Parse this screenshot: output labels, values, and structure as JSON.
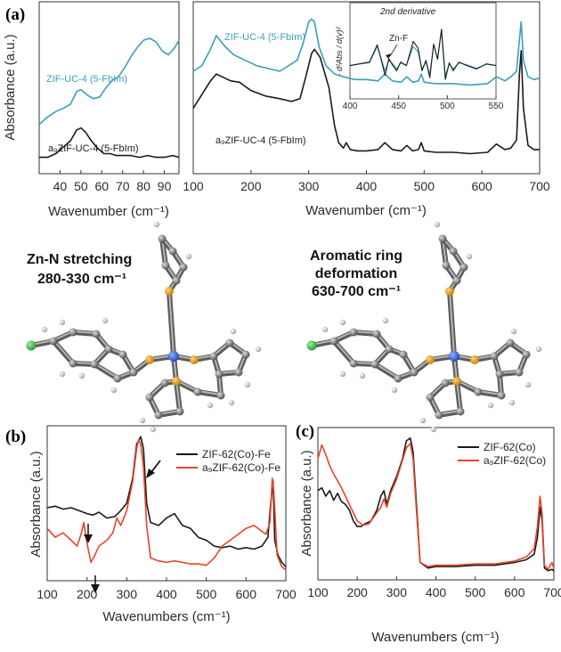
{
  "panel_labels": [
    "(a)",
    "(b)",
    "(c)"
  ],
  "captions": {
    "left": [
      "Zn-N stretching",
      "280-330 cm⁻¹"
    ],
    "right": [
      "Aromatic ring",
      "deformation",
      "630-700 cm⁻¹"
    ]
  },
  "colors": {
    "black": "#1a1a1a",
    "teal": "#3a9fbf",
    "red": "#e8442a",
    "zn": "#2e63d8",
    "n": "#e39a1f",
    "f": "#38c24a",
    "c": "#8a8a8a",
    "h": "#d0d0d0"
  },
  "chart_data": [
    {
      "id": "a-left",
      "type": "line",
      "xlabel": "Wavenumber (cm⁻¹)",
      "ylabel": "Absorbance (a.u.)",
      "xlim": [
        30,
        97
      ],
      "xticks": [
        40,
        50,
        60,
        70,
        80,
        90
      ],
      "series": [
        {
          "name": "ZIF-UC-4 (5-FbIm)",
          "color": "#3a9fbf",
          "x": [
            30,
            34,
            38,
            42,
            45,
            48,
            50,
            53,
            56,
            59,
            62,
            65,
            68,
            71,
            74,
            77,
            80,
            83,
            86,
            89,
            92,
            95,
            97
          ],
          "y": [
            0.2,
            0.24,
            0.27,
            0.29,
            0.31,
            0.38,
            0.39,
            0.36,
            0.34,
            0.35,
            0.4,
            0.44,
            0.46,
            0.51,
            0.57,
            0.62,
            0.66,
            0.67,
            0.65,
            0.6,
            0.58,
            0.62,
            0.66
          ]
        },
        {
          "name": "a₉ZIF-UC-4 (5-FbIm)",
          "color": "#1a1a1a",
          "x": [
            30,
            34,
            38,
            42,
            45,
            48,
            50,
            52,
            55,
            58,
            61,
            64,
            67,
            70,
            74,
            78,
            82,
            86,
            90,
            94,
            97
          ],
          "y": [
            0.02,
            0.02,
            0.04,
            0.08,
            0.11,
            0.17,
            0.18,
            0.16,
            0.11,
            0.07,
            0.04,
            0.04,
            0.03,
            0.03,
            0.03,
            0.02,
            0.03,
            0.02,
            0.02,
            0.03,
            0.02
          ]
        }
      ]
    },
    {
      "id": "a-right",
      "type": "line",
      "xlabel": "Wavenumber (cm⁻¹)",
      "xlim": [
        100,
        700
      ],
      "xticks": [
        100,
        200,
        300,
        400,
        500,
        600,
        700
      ],
      "series": [
        {
          "name": "ZIF-UC-4 (5-FbIm)",
          "color": "#3a9fbf",
          "x": [
            100,
            115,
            130,
            140,
            155,
            170,
            190,
            210,
            230,
            250,
            265,
            280,
            290,
            300,
            305,
            310,
            318,
            330,
            345,
            360,
            380,
            400,
            420,
            432,
            445,
            460,
            470,
            480,
            490,
            495,
            500,
            520,
            550,
            580,
            610,
            625,
            640,
            650,
            660,
            665,
            668,
            672,
            680,
            690,
            700
          ],
          "y": [
            0.62,
            0.66,
            0.78,
            0.88,
            0.8,
            0.74,
            0.7,
            0.66,
            0.64,
            0.62,
            0.66,
            0.7,
            0.82,
            0.98,
            1.0,
            0.98,
            0.8,
            0.66,
            0.6,
            0.58,
            0.56,
            0.56,
            0.55,
            0.6,
            0.55,
            0.54,
            0.58,
            0.54,
            0.55,
            0.6,
            0.54,
            0.53,
            0.53,
            0.52,
            0.53,
            0.58,
            0.55,
            0.58,
            0.62,
            0.85,
            0.98,
            0.7,
            0.58,
            0.56,
            0.57
          ]
        },
        {
          "name": "a₉ZIF-UC-4 (5-FbIm)",
          "color": "#1a1a1a",
          "x": [
            100,
            115,
            130,
            140,
            150,
            165,
            180,
            200,
            225,
            250,
            270,
            285,
            295,
            305,
            310,
            320,
            335,
            345,
            352,
            360,
            365,
            372,
            385,
            400,
            420,
            432,
            445,
            460,
            470,
            480,
            490,
            495,
            500,
            520,
            550,
            580,
            610,
            625,
            640,
            650,
            660,
            665,
            668,
            672,
            680,
            690,
            700
          ],
          "y": [
            0.35,
            0.45,
            0.55,
            0.6,
            0.58,
            0.55,
            0.54,
            0.48,
            0.44,
            0.42,
            0.4,
            0.42,
            0.58,
            0.75,
            0.78,
            0.72,
            0.5,
            0.22,
            0.1,
            0.06,
            0.1,
            0.05,
            0.04,
            0.04,
            0.05,
            0.1,
            0.05,
            0.04,
            0.08,
            0.04,
            0.05,
            0.1,
            0.04,
            0.03,
            0.03,
            0.02,
            0.03,
            0.09,
            0.05,
            0.06,
            0.12,
            0.6,
            0.77,
            0.35,
            0.08,
            0.05,
            0.05
          ]
        }
      ]
    },
    {
      "id": "a-inset",
      "type": "line",
      "title": "2nd derivative",
      "ylabel": "- d²Abs / d(v)²",
      "annotation": "Zn-F",
      "xlim": [
        400,
        550
      ],
      "xticks": [
        400,
        450,
        500,
        550
      ],
      "series": [
        {
          "name": "teal",
          "color": "#3a9fbf",
          "x": [
            400,
            410,
            420,
            428,
            432,
            436,
            440,
            444,
            448,
            452,
            458,
            465,
            470,
            474,
            478,
            482,
            486,
            490,
            494,
            498,
            502,
            506,
            512,
            520,
            530,
            540,
            550
          ],
          "y": [
            0.0,
            0.05,
            0.08,
            0.55,
            0.2,
            -0.15,
            0.15,
            0.05,
            -0.1,
            0.08,
            0.0,
            0.55,
            0.4,
            -0.1,
            0.1,
            -0.25,
            0.6,
            0.2,
            1.0,
            -0.3,
            0.05,
            -0.1,
            0.08,
            0.02,
            -0.08,
            0.04,
            0.0
          ]
        },
        {
          "name": "black",
          "color": "#1a1a1a",
          "x": [
            400,
            410,
            420,
            428,
            432,
            436,
            440,
            444,
            448,
            452,
            458,
            465,
            470,
            474,
            478,
            482,
            486,
            490,
            494,
            498,
            502,
            506,
            512,
            520,
            530,
            540,
            550
          ],
          "y": [
            0.0,
            0.05,
            0.1,
            0.6,
            0.18,
            -0.28,
            0.2,
            0.0,
            -0.15,
            0.1,
            0.0,
            0.7,
            0.5,
            -0.15,
            0.15,
            -0.35,
            0.62,
            0.18,
            1.05,
            -0.4,
            0.08,
            -0.15,
            0.1,
            0.0,
            -0.1,
            0.05,
            0.0
          ]
        }
      ]
    },
    {
      "id": "b",
      "type": "line",
      "ylabel": "Absorbance (a.u.)",
      "xlabel": "Wavenumbers (cm⁻¹)",
      "xlim": [
        100,
        700
      ],
      "xticks": [
        100,
        200,
        300,
        400,
        500,
        600,
        700
      ],
      "legend": "top-right",
      "series": [
        {
          "name": "ZIF-62(Co)-Fe",
          "color": "#1a1a1a",
          "x": [
            100,
            120,
            140,
            160,
            180,
            200,
            215,
            230,
            250,
            270,
            285,
            300,
            315,
            325,
            335,
            342,
            350,
            360,
            380,
            400,
            420,
            440,
            460,
            480,
            500,
            520,
            540,
            560,
            580,
            600,
            620,
            640,
            655,
            662,
            668,
            672,
            680,
            690,
            700
          ],
          "y": [
            0.52,
            0.53,
            0.51,
            0.52,
            0.5,
            0.48,
            0.47,
            0.49,
            0.45,
            0.46,
            0.5,
            0.55,
            0.72,
            0.95,
            1.0,
            0.92,
            0.55,
            0.42,
            0.4,
            0.45,
            0.48,
            0.4,
            0.38,
            0.32,
            0.3,
            0.26,
            0.25,
            0.26,
            0.24,
            0.25,
            0.24,
            0.26,
            0.32,
            0.55,
            0.7,
            0.3,
            0.2,
            0.15,
            0.12
          ]
        },
        {
          "name": "a₉ZIF-62(Co)-Fe",
          "color": "#e8442a",
          "x": [
            100,
            120,
            140,
            160,
            175,
            185,
            192,
            200,
            210,
            220,
            230,
            250,
            265,
            275,
            285,
            300,
            315,
            325,
            330,
            335,
            342,
            350,
            360,
            380,
            400,
            420,
            440,
            460,
            480,
            500,
            520,
            540,
            560,
            580,
            600,
            620,
            640,
            650,
            660,
            666,
            670,
            678,
            690,
            700
          ],
          "y": [
            0.38,
            0.32,
            0.35,
            0.3,
            0.26,
            0.34,
            0.42,
            0.28,
            0.15,
            0.2,
            0.26,
            0.3,
            0.35,
            0.45,
            0.4,
            0.5,
            0.7,
            0.92,
            0.98,
            0.95,
            0.8,
            0.4,
            0.18,
            0.16,
            0.15,
            0.16,
            0.15,
            0.14,
            0.14,
            0.13,
            0.18,
            0.26,
            0.3,
            0.34,
            0.38,
            0.4,
            0.36,
            0.34,
            0.42,
            0.72,
            0.62,
            0.2,
            0.12,
            0.1
          ]
        }
      ]
    },
    {
      "id": "c",
      "type": "line",
      "ylabel": "Absorbance (a.u.)",
      "xlabel": "Wavenumbers (cm⁻¹)",
      "xlim": [
        100,
        700
      ],
      "xticks": [
        100,
        200,
        300,
        400,
        500,
        600,
        700
      ],
      "legend": "top-right",
      "series": [
        {
          "name": "ZIF-62(Co)",
          "color": "#1a1a1a",
          "x": [
            100,
            110,
            120,
            130,
            140,
            150,
            160,
            170,
            180,
            190,
            200,
            210,
            220,
            235,
            250,
            260,
            268,
            275,
            285,
            300,
            315,
            325,
            335,
            342,
            350,
            360,
            380,
            400,
            450,
            500,
            550,
            600,
            630,
            650,
            658,
            665,
            670,
            676,
            685,
            695,
            700
          ],
          "y": [
            0.62,
            0.64,
            0.58,
            0.62,
            0.55,
            0.6,
            0.54,
            0.52,
            0.48,
            0.4,
            0.36,
            0.36,
            0.38,
            0.4,
            0.48,
            0.58,
            0.62,
            0.52,
            0.62,
            0.72,
            0.85,
            0.98,
            1.0,
            0.9,
            0.55,
            0.1,
            0.06,
            0.07,
            0.07,
            0.08,
            0.08,
            0.1,
            0.12,
            0.16,
            0.28,
            0.5,
            0.4,
            0.06,
            0.04,
            0.05,
            0.04
          ]
        },
        {
          "name": "a₉ZIF-62(Co)",
          "color": "#e8442a",
          "x": [
            100,
            110,
            120,
            130,
            140,
            160,
            180,
            200,
            215,
            230,
            245,
            260,
            268,
            275,
            285,
            300,
            315,
            325,
            335,
            342,
            350,
            360,
            380,
            400,
            450,
            500,
            550,
            600,
            630,
            650,
            658,
            665,
            670,
            676,
            685,
            695,
            700
          ],
          "y": [
            0.85,
            0.95,
            0.88,
            0.8,
            0.74,
            0.64,
            0.52,
            0.4,
            0.37,
            0.38,
            0.44,
            0.5,
            0.56,
            0.5,
            0.6,
            0.7,
            0.84,
            0.93,
            0.96,
            0.85,
            0.5,
            0.1,
            0.07,
            0.08,
            0.08,
            0.09,
            0.09,
            0.11,
            0.14,
            0.2,
            0.36,
            0.58,
            0.45,
            0.08,
            0.05,
            0.1,
            0.06
          ]
        }
      ]
    }
  ]
}
